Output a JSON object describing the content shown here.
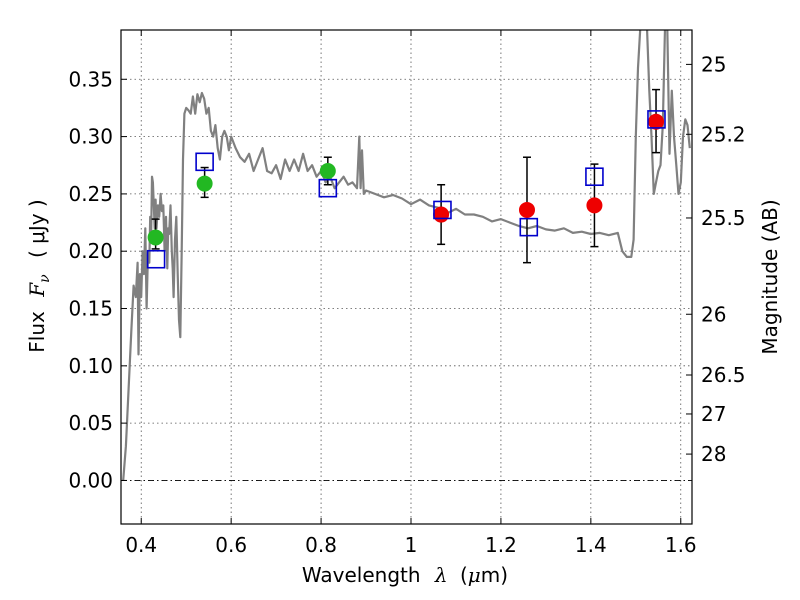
{
  "chart_data": {
    "type": "scatter",
    "title": "",
    "xlabel": {
      "prefix": "Wavelength",
      "symbol": "λ",
      "unit_open": "(",
      "unit_mu": "μ",
      "unit_rest": "m)"
    },
    "ylabel": {
      "prefix": "Flux",
      "symbol": "F",
      "subscript": "ν",
      "unit": "( μJy )"
    },
    "y2label": "Magnitude (AB)",
    "xlim": [
      0.355,
      1.625
    ],
    "ylim": [
      -0.038,
      0.393
    ],
    "grid": true,
    "x_ticks": [
      {
        "value": 0.4,
        "label": "0.4"
      },
      {
        "value": 0.6,
        "label": "0.6"
      },
      {
        "value": 0.8,
        "label": "0.8"
      },
      {
        "value": 1.0,
        "label": "1"
      },
      {
        "value": 1.2,
        "label": "1.2"
      },
      {
        "value": 1.4,
        "label": "1.4"
      },
      {
        "value": 1.6,
        "label": "1.6"
      }
    ],
    "y_ticks": [
      {
        "value": 0.0,
        "label": "0.00"
      },
      {
        "value": 0.05,
        "label": "0.05"
      },
      {
        "value": 0.1,
        "label": "0.10"
      },
      {
        "value": 0.15,
        "label": "0.15"
      },
      {
        "value": 0.2,
        "label": "0.20"
      },
      {
        "value": 0.25,
        "label": "0.25"
      },
      {
        "value": 0.3,
        "label": "0.30"
      },
      {
        "value": 0.35,
        "label": "0.35"
      }
    ],
    "y2_ticks": [
      {
        "flux": 0.363,
        "label": "25"
      },
      {
        "flux": 0.302,
        "label": "25.2"
      },
      {
        "flux": 0.229,
        "label": "25.5"
      },
      {
        "flux": 0.145,
        "label": "26"
      },
      {
        "flux": 0.092,
        "label": "26.5"
      },
      {
        "flux": 0.058,
        "label": "27"
      },
      {
        "flux": 0.023,
        "label": "28"
      }
    ],
    "model_sed": {
      "color": "#808080",
      "x": [
        0.36,
        0.366,
        0.372,
        0.378,
        0.383,
        0.388,
        0.392,
        0.394,
        0.397,
        0.4,
        0.403,
        0.406,
        0.409,
        0.412,
        0.415,
        0.418,
        0.42,
        0.422,
        0.424,
        0.426,
        0.428,
        0.43,
        0.432,
        0.434,
        0.437,
        0.44,
        0.443,
        0.446,
        0.449,
        0.452,
        0.455,
        0.458,
        0.46,
        0.462,
        0.465,
        0.468,
        0.47,
        0.472,
        0.475,
        0.478,
        0.481,
        0.484,
        0.487,
        0.49,
        0.493,
        0.496,
        0.5,
        0.505,
        0.51,
        0.515,
        0.52,
        0.525,
        0.53,
        0.535,
        0.54,
        0.545,
        0.55,
        0.555,
        0.56,
        0.565,
        0.57,
        0.575,
        0.58,
        0.585,
        0.59,
        0.595,
        0.6,
        0.61,
        0.62,
        0.63,
        0.64,
        0.65,
        0.66,
        0.67,
        0.68,
        0.69,
        0.7,
        0.71,
        0.72,
        0.73,
        0.74,
        0.75,
        0.76,
        0.77,
        0.78,
        0.79,
        0.8,
        0.81,
        0.82,
        0.83,
        0.84,
        0.85,
        0.86,
        0.87,
        0.88,
        0.885,
        0.888,
        0.891,
        0.895,
        0.9,
        0.92,
        0.94,
        0.96,
        0.98,
        1.0,
        1.02,
        1.04,
        1.06,
        1.08,
        1.1,
        1.12,
        1.14,
        1.16,
        1.18,
        1.2,
        1.22,
        1.24,
        1.26,
        1.28,
        1.3,
        1.32,
        1.34,
        1.36,
        1.38,
        1.4,
        1.42,
        1.44,
        1.46,
        1.47,
        1.48,
        1.49,
        1.495,
        1.5,
        1.505,
        1.51,
        1.515,
        1.52,
        1.525,
        1.53,
        1.535,
        1.54,
        1.545,
        1.55,
        1.555,
        1.56,
        1.565,
        1.57,
        1.575,
        1.58,
        1.585,
        1.59,
        1.595,
        1.6,
        1.605,
        1.61,
        1.615,
        1.62
      ],
      "y": [
        0.0,
        0.03,
        0.08,
        0.13,
        0.17,
        0.16,
        0.19,
        0.11,
        0.18,
        0.16,
        0.2,
        0.18,
        0.22,
        0.15,
        0.2,
        0.19,
        0.23,
        0.21,
        0.265,
        0.26,
        0.24,
        0.22,
        0.245,
        0.22,
        0.24,
        0.23,
        0.25,
        0.235,
        0.24,
        0.2,
        0.23,
        0.185,
        0.22,
        0.215,
        0.24,
        0.2,
        0.185,
        0.16,
        0.21,
        0.23,
        0.18,
        0.14,
        0.125,
        0.2,
        0.28,
        0.32,
        0.325,
        0.323,
        0.32,
        0.335,
        0.32,
        0.337,
        0.33,
        0.338,
        0.333,
        0.32,
        0.325,
        0.305,
        0.3,
        0.31,
        0.29,
        0.28,
        0.3,
        0.305,
        0.3,
        0.288,
        0.3,
        0.29,
        0.282,
        0.278,
        0.285,
        0.27,
        0.28,
        0.29,
        0.27,
        0.268,
        0.275,
        0.263,
        0.28,
        0.27,
        0.28,
        0.27,
        0.285,
        0.27,
        0.275,
        0.265,
        0.27,
        0.26,
        0.265,
        0.255,
        0.26,
        0.265,
        0.258,
        0.26,
        0.255,
        0.3,
        0.255,
        0.288,
        0.25,
        0.253,
        0.25,
        0.247,
        0.249,
        0.246,
        0.241,
        0.245,
        0.24,
        0.238,
        0.233,
        0.237,
        0.232,
        0.232,
        0.23,
        0.226,
        0.228,
        0.225,
        0.222,
        0.22,
        0.222,
        0.219,
        0.218,
        0.22,
        0.216,
        0.217,
        0.215,
        0.216,
        0.214,
        0.216,
        0.2,
        0.195,
        0.195,
        0.21,
        0.3,
        0.36,
        0.395,
        0.395,
        0.395,
        0.395,
        0.34,
        0.3,
        0.25,
        0.26,
        0.27,
        0.275,
        0.31,
        0.395,
        0.395,
        0.285,
        0.34,
        0.3,
        0.275,
        0.25,
        0.26,
        0.3,
        0.315,
        0.31,
        0.29
      ]
    },
    "series": [
      {
        "marker": "circle",
        "color": "#22b822",
        "x": [
          0.432,
          0.541,
          0.815
        ],
        "y": [
          0.212,
          0.259,
          0.27
        ],
        "err_low": [
          0.01,
          0.012,
          0.012
        ],
        "err_high": [
          0.016,
          0.014,
          0.012
        ]
      },
      {
        "marker": "circle",
        "color": "#ee0000",
        "x": [
          1.067,
          1.258,
          1.408,
          1.545
        ],
        "y": [
          0.232,
          0.236,
          0.24,
          0.313
        ],
        "err_low": [
          0.026,
          0.046,
          0.036,
          0.027
        ],
        "err_high": [
          0.026,
          0.046,
          0.036,
          0.028
        ]
      },
      {
        "marker": "square-open",
        "color": "#0000cc",
        "x": [
          0.433,
          0.541,
          0.815,
          1.07,
          1.262,
          1.408,
          1.546
        ],
        "y": [
          0.193,
          0.278,
          0.255,
          0.236,
          0.221,
          0.265,
          0.315
        ]
      }
    ]
  }
}
